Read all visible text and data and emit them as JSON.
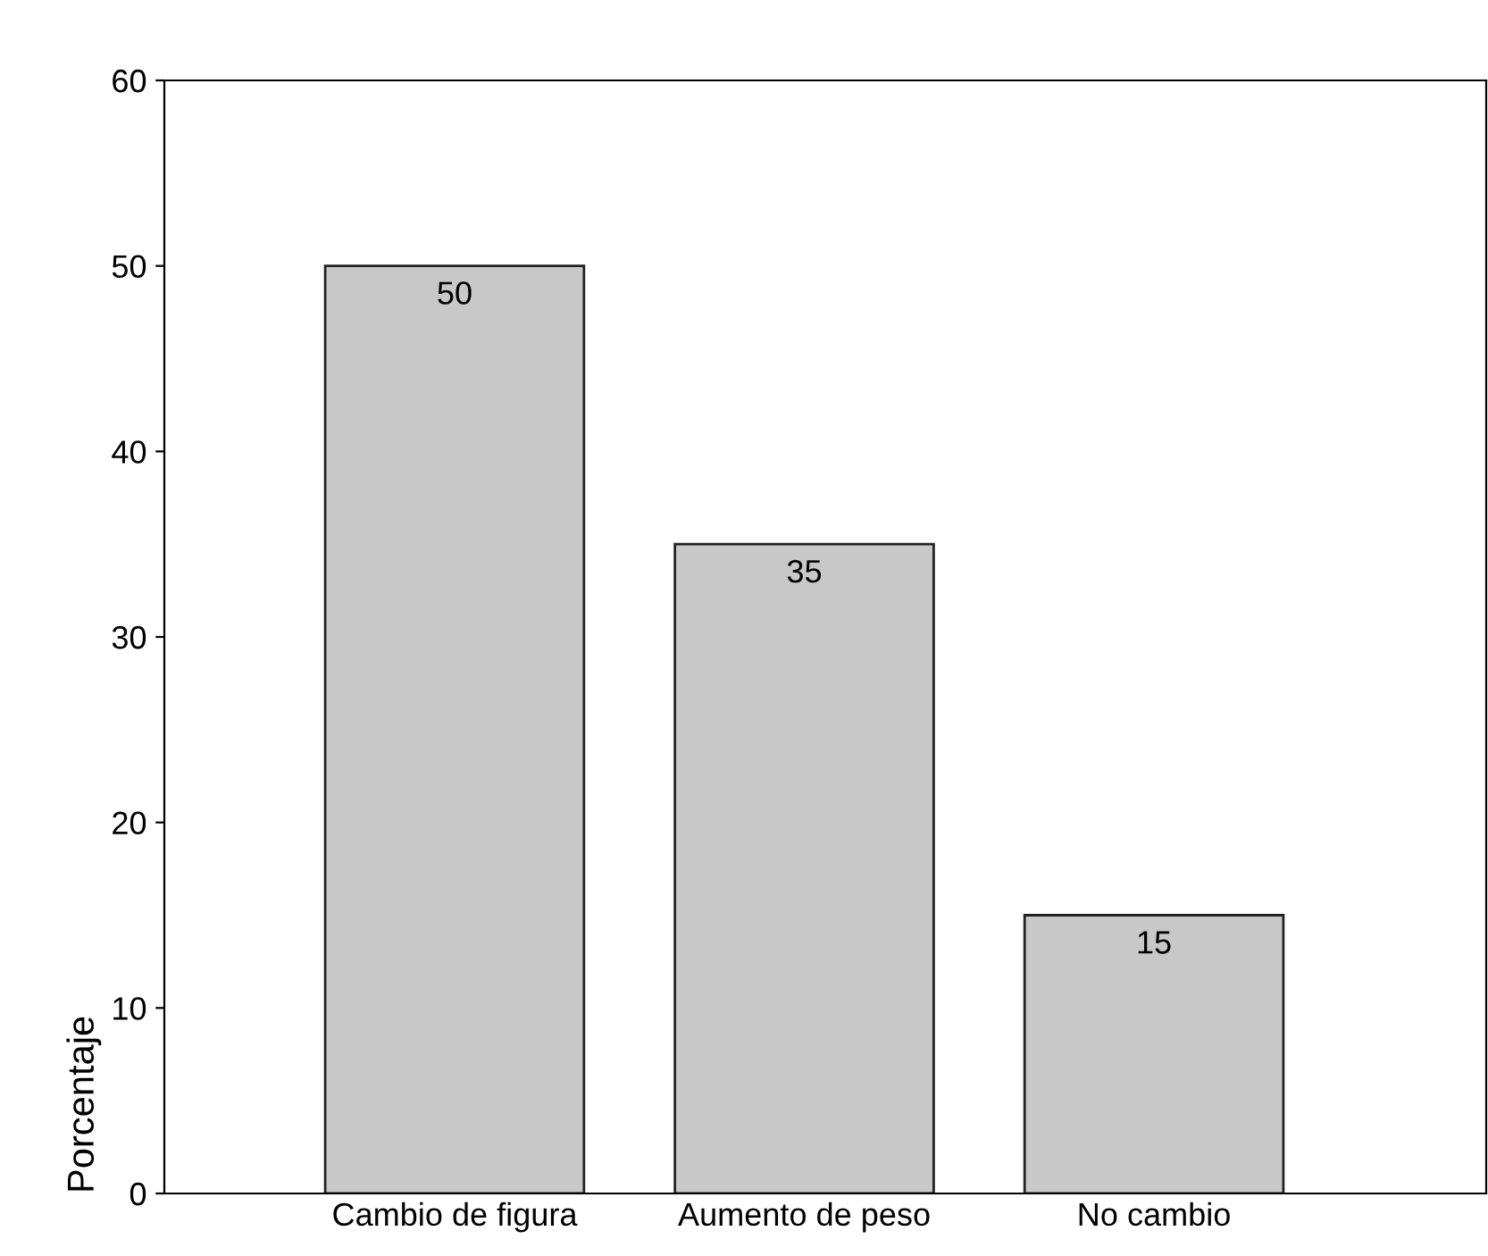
{
  "chart_data": {
    "type": "bar",
    "ylabel": "Porcentaje",
    "categories": [
      "Cambio de figura",
      "Aumento de peso",
      "No cambio"
    ],
    "values": [
      50,
      35,
      15
    ],
    "color": "#c8c8c8",
    "ylim": [
      0,
      60
    ],
    "yticks": [
      0,
      10,
      20,
      30,
      40,
      50,
      60
    ],
    "data_labels": true,
    "grid": false
  }
}
